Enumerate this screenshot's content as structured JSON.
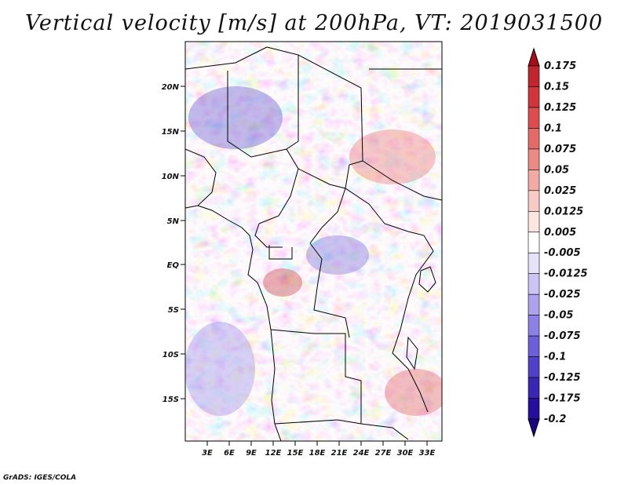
{
  "title": "Vertical velocity [m/s] at 200hPa, VT: 2019031500",
  "credit": "GrADS: IGES/COLA",
  "lat_labels": [
    "20N",
    "15N",
    "10N",
    "5N",
    "EQ",
    "5S",
    "10S",
    "15S"
  ],
  "lat_values": [
    20,
    15,
    10,
    5,
    0,
    -5,
    -10,
    -15
  ],
  "lon_labels": [
    "3E",
    "6E",
    "9E",
    "12E",
    "15E",
    "18E",
    "21E",
    "24E",
    "27E",
    "30E",
    "33E"
  ],
  "lon_values": [
    3,
    6,
    9,
    12,
    15,
    18,
    21,
    24,
    27,
    30,
    33
  ],
  "map_extent": {
    "lon": [
      0,
      35
    ],
    "lat": [
      -20,
      25
    ]
  },
  "colorbar": {
    "levels": [
      "0.175",
      "0.15",
      "0.125",
      "0.1",
      "0.075",
      "0.05",
      "0.025",
      "0.0125",
      "0.005",
      "-0.005",
      "-0.0125",
      "-0.025",
      "-0.05",
      "-0.075",
      "-0.1",
      "-0.125",
      "-0.175",
      "-0.2"
    ],
    "colors": [
      "#a50f15",
      "#c0262d",
      "#d0353b",
      "#dd4d50",
      "#e46a68",
      "#ec8a85",
      "#f2aaa5",
      "#f8cbc6",
      "#fde6e2",
      "#ffffff",
      "#e6e2fa",
      "#cbc4f5",
      "#ada2ee",
      "#8c80e4",
      "#6d5fd8",
      "#5140c8",
      "#3a26b4",
      "#250f9c",
      "#1a0585"
    ]
  }
}
